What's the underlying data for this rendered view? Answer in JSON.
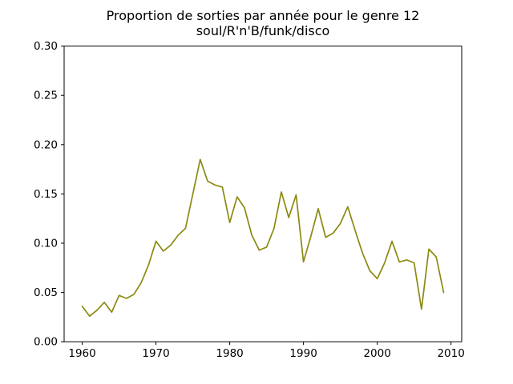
{
  "chart_data": {
    "type": "line",
    "title_line1": "Proportion de sorties par année pour le genre 12",
    "title_line2": "soul/R'n'B/funk/disco",
    "xlabel": "",
    "ylabel": "",
    "grid": false,
    "legend": "none",
    "background_color": "#ffffff",
    "line_color": "#8b8a10",
    "axis_color": "#000000",
    "xlim": [
      1957.55,
      2011.45
    ],
    "ylim": [
      0.0,
      0.3
    ],
    "xticks": {
      "values": [
        1960,
        1970,
        1980,
        1990,
        2000,
        2010
      ],
      "labels": [
        "1960",
        "1970",
        "1980",
        "1990",
        "2000",
        "2010"
      ]
    },
    "yticks": {
      "values": [
        0.0,
        0.05,
        0.1,
        0.15,
        0.2,
        0.25,
        0.3
      ],
      "labels": [
        "0.00",
        "0.05",
        "0.10",
        "0.15",
        "0.20",
        "0.25",
        "0.30"
      ]
    },
    "x": [
      1960,
      1961,
      1962,
      1963,
      1964,
      1965,
      1966,
      1967,
      1968,
      1969,
      1970,
      1971,
      1972,
      1973,
      1974,
      1975,
      1976,
      1977,
      1978,
      1979,
      1980,
      1981,
      1982,
      1983,
      1984,
      1985,
      1986,
      1987,
      1988,
      1989,
      1990,
      1991,
      1992,
      1993,
      1994,
      1995,
      1996,
      1997,
      1998,
      1999,
      2000,
      2001,
      2002,
      2003,
      2004,
      2005,
      2006,
      2007,
      2008,
      2009
    ],
    "values": [
      0.036,
      0.026,
      0.032,
      0.04,
      0.03,
      0.047,
      0.044,
      0.048,
      0.06,
      0.078,
      0.102,
      0.092,
      0.098,
      0.108,
      0.115,
      0.15,
      0.185,
      0.163,
      0.159,
      0.157,
      0.121,
      0.147,
      0.136,
      0.108,
      0.093,
      0.096,
      0.115,
      0.152,
      0.126,
      0.149,
      0.081,
      0.107,
      0.135,
      0.106,
      0.11,
      0.12,
      0.137,
      0.113,
      0.09,
      0.072,
      0.064,
      0.08,
      0.102,
      0.081,
      0.083,
      0.08,
      0.033,
      0.094,
      0.086,
      0.05
    ]
  }
}
